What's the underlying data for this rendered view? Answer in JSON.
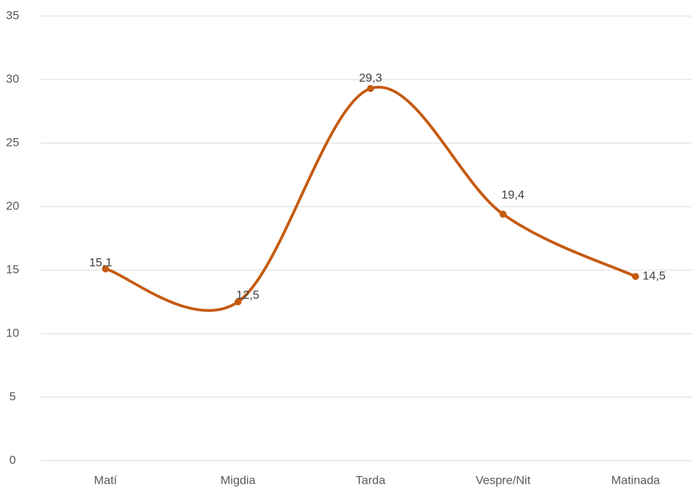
{
  "chart_data": {
    "type": "line",
    "categories": [
      "Matí",
      "Migdia",
      "Tarda",
      "Vespre/Nit",
      "Matinada"
    ],
    "values": [
      15.1,
      12.5,
      29.3,
      19.4,
      14.5
    ],
    "value_labels": [
      "15,1",
      "12,5",
      "29,3",
      "19,4",
      "14,5"
    ],
    "color": "#c55a11",
    "smooth": true,
    "ylim": [
      0,
      35
    ],
    "yticks": [
      0,
      5,
      10,
      15,
      20,
      25,
      30,
      35
    ],
    "grid": true
  }
}
